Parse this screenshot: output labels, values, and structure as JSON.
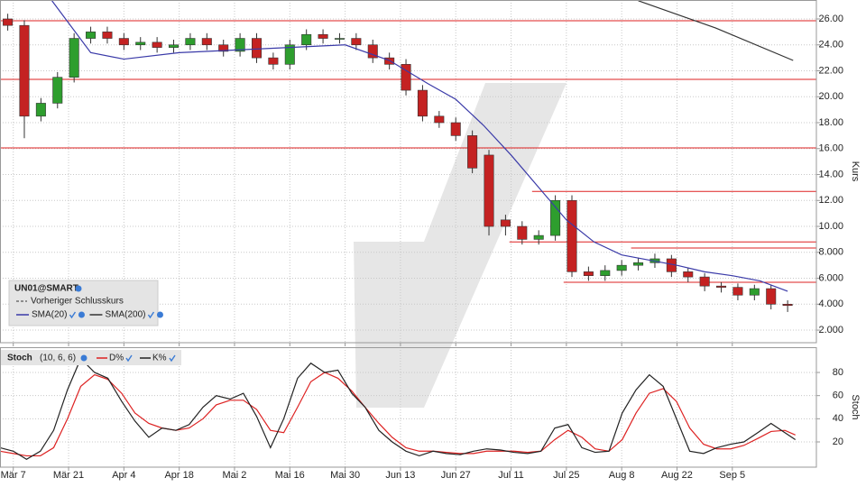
{
  "chart_data": [
    {
      "type": "candlestick",
      "title": "UN01@SMART",
      "previous_close_label": "Vorheriger Schlusskurs",
      "x": [
        -1,
        2,
        5,
        8,
        11,
        14,
        17,
        20,
        23,
        26,
        29,
        32,
        35,
        38,
        41,
        44,
        47,
        50,
        53,
        56,
        59,
        62,
        65,
        68,
        71,
        74,
        77,
        80,
        83,
        86,
        89,
        92,
        95,
        98,
        101,
        104,
        107,
        110,
        113,
        116,
        119,
        122,
        125,
        128,
        131,
        134,
        137,
        140
      ],
      "open": [
        26,
        25.5,
        18.5,
        19.5,
        21.5,
        24.5,
        25,
        24.5,
        24,
        24.2,
        23.8,
        24,
        24.5,
        24,
        23.5,
        24.5,
        23,
        22.5,
        24,
        24.8,
        24.5,
        24.5,
        24,
        23,
        22.5,
        20.5,
        18.5,
        18,
        17,
        15.5,
        10.5,
        10,
        9,
        9.3,
        12,
        6.5,
        6.2,
        6.6,
        7,
        7.2,
        7.5,
        6.5,
        6.1,
        5.4,
        5.3,
        4.7,
        5.2,
        4
      ],
      "high": [
        26.4,
        25.9,
        19.9,
        21.9,
        24.9,
        25.4,
        25.4,
        24.9,
        24.6,
        24.6,
        24.4,
        24.9,
        24.9,
        24.4,
        24.9,
        24.9,
        23.4,
        24.4,
        25.2,
        25.2,
        24.9,
        24.9,
        24.4,
        23.4,
        22.9,
        20.9,
        18.9,
        18.4,
        17.4,
        15.9,
        10.9,
        10.4,
        9.7,
        12.4,
        12.4,
        6.9,
        7,
        7.4,
        7.6,
        7.9,
        7.8,
        6.8,
        6.4,
        5.7,
        5.6,
        5.5,
        5.5,
        4.3
      ],
      "low": [
        25.1,
        16.8,
        18.1,
        19.1,
        21.1,
        24.1,
        24.1,
        23.6,
        23.6,
        23.4,
        23.4,
        23.6,
        23.6,
        23.1,
        23.1,
        22.6,
        22.1,
        22.1,
        23.6,
        24.1,
        24.1,
        23.6,
        22.6,
        22.1,
        20.1,
        18.1,
        17.6,
        16.6,
        14.1,
        9.3,
        9.3,
        8.6,
        8.6,
        8.9,
        6.1,
        5.8,
        5.8,
        6.2,
        6.6,
        6.8,
        6.1,
        5.7,
        5,
        4.9,
        4.3,
        4.3,
        3.6,
        3.4
      ],
      "close": [
        25.5,
        18.5,
        19.5,
        21.5,
        24.5,
        25,
        24.5,
        24,
        24.2,
        23.8,
        24,
        24.5,
        24,
        23.5,
        24.5,
        23,
        22.5,
        24,
        24.8,
        24.5,
        24.5,
        24,
        23,
        22.5,
        20.5,
        18.5,
        18,
        17,
        14.5,
        10,
        10,
        9,
        9.3,
        12,
        6.5,
        6.2,
        6.6,
        7,
        7.2,
        7.5,
        6.5,
        6.1,
        5.4,
        5.3,
        4.7,
        5.2,
        4,
        3.9
      ],
      "up_color": "#2e9e2e",
      "down_color": "#c42222",
      "overlays": [
        {
          "name": "SMA(20)",
          "color": "#3a3aa8",
          "x": [
            7,
            14,
            20,
            30,
            40,
            50,
            60,
            68,
            75,
            80,
            85,
            90,
            95,
            100,
            105,
            110,
            115,
            120,
            125,
            130,
            135,
            140
          ],
          "values": [
            27.4,
            23.4,
            22.9,
            23.4,
            23.6,
            23.8,
            24,
            22.8,
            21,
            19.8,
            17.8,
            15.5,
            13,
            10.5,
            8.8,
            7.8,
            7.4,
            7,
            6.5,
            6.2,
            5.8,
            5
          ]
        },
        {
          "name": "SMA(200)",
          "color": "#333333",
          "x": [
            113,
            127,
            141
          ],
          "values": [
            27.4,
            25.3,
            22.8
          ]
        }
      ],
      "levels": [
        {
          "value": 25.86,
          "from": -2.4
        },
        {
          "value": 21.34,
          "from": -2.4
        },
        {
          "value": 16.05,
          "from": -2.4
        },
        {
          "value": 12.7,
          "from": 93.8
        },
        {
          "value": 8.8,
          "from": 89.7
        },
        {
          "value": 8.33,
          "from": 111.7
        },
        {
          "value": 5.69,
          "from": 99.5
        }
      ],
      "level_color": "#dd2020",
      "ylabel": "Kurs",
      "ylim": [
        1.03,
        27.46
      ],
      "yticks": [
        {
          "value": 2,
          "label": "2.000"
        },
        {
          "value": 4,
          "label": "4.000"
        },
        {
          "value": 6,
          "label": "6.000"
        },
        {
          "value": 8,
          "label": "8.000"
        },
        {
          "value": 10,
          "label": "10.00"
        },
        {
          "value": 12,
          "label": "12.00"
        },
        {
          "value": 14,
          "label": "14.00"
        },
        {
          "value": 16,
          "label": "16.00"
        },
        {
          "value": 18,
          "label": "18.00"
        },
        {
          "value": 20,
          "label": "20.00"
        },
        {
          "value": 22,
          "label": "22.00"
        },
        {
          "value": 24,
          "label": "24.00"
        },
        {
          "value": 26,
          "label": "26.00"
        }
      ],
      "xlim": [
        -2.4,
        145.2
      ],
      "xticks": [
        0,
        10,
        20,
        30,
        40,
        50,
        60,
        70,
        80,
        90,
        100,
        110,
        120,
        130
      ],
      "grid": true
    },
    {
      "type": "line",
      "title": "Stoch",
      "params": "(10, 6, 6)",
      "x": [
        -2.4,
        0,
        2.4,
        4.9,
        7.3,
        9.8,
        12.2,
        14.7,
        17.1,
        19.6,
        22,
        24.5,
        26.9,
        29.4,
        31.8,
        34.3,
        36.7,
        39.2,
        41.6,
        44,
        46.5,
        48.9,
        51.4,
        53.8,
        56.3,
        58.7,
        61.2,
        63.6,
        66.1,
        68.5,
        71,
        73.4,
        75.9,
        78.3,
        80.8,
        83.2,
        85.6,
        88.1,
        90.5,
        93,
        95.4,
        97.9,
        100.3,
        102.8,
        105.2,
        107.7,
        110.1,
        112.6,
        115,
        117.5,
        119.9,
        122.3,
        124.8,
        127.2,
        129.7,
        132.1,
        134.6,
        137,
        139.5,
        141.4
      ],
      "series": [
        {
          "name": "D%",
          "color": "#dd2222",
          "values": [
            12,
            10,
            8,
            8,
            15,
            40,
            68,
            78,
            74,
            62,
            45,
            36,
            32,
            30,
            32,
            40,
            52,
            56,
            56,
            48,
            30,
            28,
            50,
            72,
            80,
            75,
            64,
            50,
            36,
            24,
            15,
            12,
            12,
            11,
            10,
            10,
            12,
            12,
            12,
            11,
            12,
            22,
            30,
            24,
            14,
            12,
            22,
            45,
            62,
            66,
            55,
            32,
            18,
            14,
            14,
            17,
            23,
            29,
            30,
            26
          ]
        },
        {
          "name": "K%",
          "color": "#222222",
          "values": [
            15,
            12,
            5,
            12,
            30,
            65,
            92,
            80,
            75,
            55,
            38,
            24,
            32,
            30,
            35,
            50,
            60,
            57,
            62,
            42,
            15,
            40,
            75,
            88,
            80,
            82,
            62,
            50,
            30,
            20,
            12,
            8,
            12,
            10,
            9,
            12,
            14,
            13,
            11,
            10,
            12,
            32,
            35,
            15,
            11,
            12,
            45,
            65,
            78,
            68,
            40,
            12,
            10,
            15,
            18,
            20,
            28,
            36,
            28,
            22
          ]
        }
      ],
      "ylabel": "Stoch",
      "ylim": [
        -1.8,
        101.8
      ],
      "yticks": [
        20,
        40,
        60,
        80
      ],
      "xlim": [
        -2.4,
        145.2
      ],
      "xticks": [
        {
          "value": 0,
          "label": "Mär 7"
        },
        {
          "value": 10,
          "label": "Mär 21"
        },
        {
          "value": 20,
          "label": "Apr 4"
        },
        {
          "value": 30,
          "label": "Apr 18"
        },
        {
          "value": 40,
          "label": "Mai 2"
        },
        {
          "value": 50,
          "label": "Mai 16"
        },
        {
          "value": 60,
          "label": "Mai 30"
        },
        {
          "value": 70,
          "label": "Jun 13"
        },
        {
          "value": 80,
          "label": "Jun 27"
        },
        {
          "value": 90,
          "label": "Jul 11"
        },
        {
          "value": 100,
          "label": "Jul 25"
        },
        {
          "value": 110,
          "label": "Aug 8"
        },
        {
          "value": 120,
          "label": "Aug 22"
        },
        {
          "value": 130,
          "label": "Sep 5"
        }
      ],
      "grid": true
    }
  ]
}
